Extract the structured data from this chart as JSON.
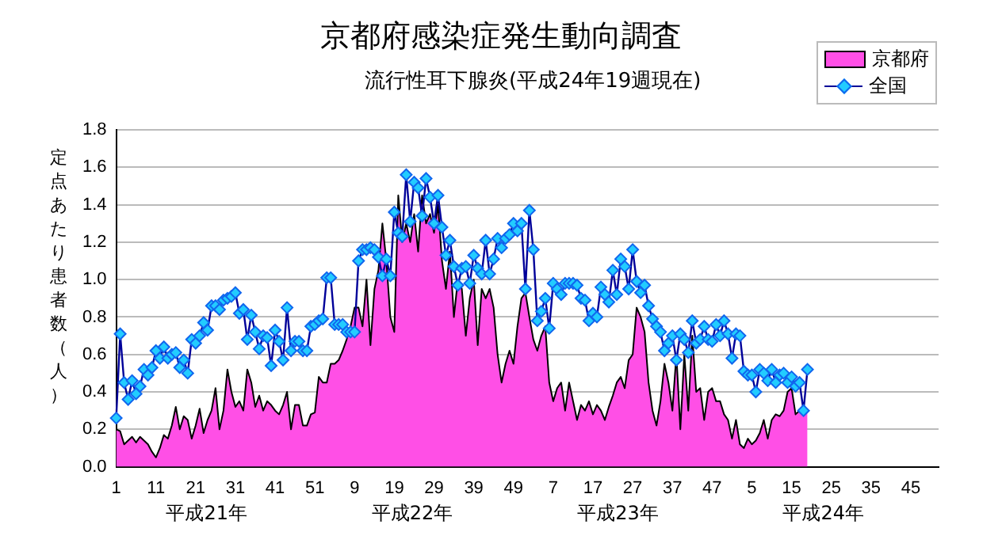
{
  "chart_data": {
    "type": "line",
    "title": "京都府感染症発生動向調査",
    "subtitle": "流行性耳下腺炎(平成24年19週現在)",
    "ylabel": "定点あたり患者数（人）",
    "categories": [
      "1",
      null,
      null,
      null,
      null,
      null,
      null,
      null,
      null,
      null,
      "11",
      null,
      null,
      null,
      null,
      null,
      null,
      null,
      null,
      null,
      "21",
      null,
      null,
      null,
      null,
      null,
      null,
      null,
      null,
      null,
      "31",
      null,
      null,
      null,
      null,
      null,
      null,
      null,
      null,
      null,
      "41",
      null,
      null,
      null,
      null,
      null,
      null,
      null,
      null,
      null,
      "51",
      null,
      null,
      null,
      null,
      null,
      null,
      null,
      null,
      null,
      "9",
      null,
      null,
      null,
      null,
      null,
      null,
      null,
      null,
      null,
      "19",
      null,
      null,
      null,
      null,
      null,
      null,
      null,
      null,
      null,
      "29",
      null,
      null,
      null,
      null,
      null,
      null,
      null,
      null,
      null,
      "39",
      null,
      null,
      null,
      null,
      null,
      null,
      null,
      null,
      null,
      "49",
      null,
      null,
      null,
      null,
      null,
      null,
      null,
      null,
      null,
      "7",
      null,
      null,
      null,
      null,
      null,
      null,
      null,
      null,
      null,
      "17",
      null,
      null,
      null,
      null,
      null,
      null,
      null,
      null,
      null,
      "27",
      null,
      null,
      null,
      null,
      null,
      null,
      null,
      null,
      null,
      "37",
      null,
      null,
      null,
      null,
      null,
      null,
      null,
      null,
      null,
      "47",
      null,
      null,
      null,
      null,
      null,
      null,
      null,
      null,
      null,
      "5",
      null,
      null,
      null,
      null,
      null,
      null,
      null,
      null,
      null,
      "15",
      null,
      null,
      null,
      null,
      null,
      null,
      null,
      null,
      null,
      "25",
      null,
      null,
      null,
      null,
      null,
      null,
      null,
      null,
      null,
      "35",
      null,
      null,
      null,
      null,
      null,
      null,
      null,
      null,
      null,
      "45",
      null,
      null,
      null,
      null,
      null,
      null,
      null
    ],
    "series": [
      {
        "name": "京都府",
        "type": "area",
        "color": "#ff4fe6",
        "values": [
          0.2,
          0.19,
          0.12,
          0.14,
          0.16,
          0.13,
          0.16,
          0.14,
          0.12,
          0.08,
          0.05,
          0.1,
          0.17,
          0.15,
          0.22,
          0.32,
          0.2,
          0.27,
          0.25,
          0.15,
          0.22,
          0.31,
          0.18,
          0.25,
          0.3,
          0.42,
          0.2,
          0.3,
          0.52,
          0.4,
          0.32,
          0.35,
          0.3,
          0.52,
          0.45,
          0.32,
          0.38,
          0.3,
          0.35,
          0.33,
          0.3,
          0.28,
          0.33,
          0.4,
          0.2,
          0.33,
          0.33,
          0.22,
          0.22,
          0.28,
          0.29,
          0.48,
          0.45,
          0.45,
          0.55,
          0.55,
          0.57,
          0.62,
          0.68,
          0.75,
          0.85,
          0.85,
          0.75,
          1.0,
          0.65,
          0.95,
          1.05,
          1.3,
          1.1,
          0.8,
          0.72,
          1.45,
          1.2,
          1.3,
          1.2,
          1.35,
          1.15,
          1.45,
          1.3,
          1.35,
          1.25,
          1.4,
          1.1,
          0.95,
          1.15,
          0.8,
          1.0,
          0.95,
          0.7,
          0.9,
          1.0,
          0.65,
          0.95,
          0.9,
          0.95,
          0.85,
          0.6,
          0.45,
          0.55,
          0.62,
          0.55,
          0.75,
          0.9,
          0.93,
          0.8,
          0.68,
          0.62,
          0.7,
          0.75,
          0.45,
          0.35,
          0.42,
          0.45,
          0.3,
          0.45,
          0.35,
          0.25,
          0.33,
          0.3,
          0.35,
          0.28,
          0.33,
          0.3,
          0.25,
          0.32,
          0.38,
          0.45,
          0.48,
          0.42,
          0.57,
          0.6,
          0.85,
          0.8,
          0.72,
          0.45,
          0.3,
          0.22,
          0.35,
          0.55,
          0.45,
          0.3,
          0.6,
          0.2,
          0.6,
          0.3,
          0.7,
          0.4,
          0.42,
          0.25,
          0.4,
          0.42,
          0.35,
          0.35,
          0.28,
          0.25,
          0.15,
          0.25,
          0.12,
          0.1,
          0.15,
          0.12,
          0.14,
          0.18,
          0.25,
          0.15,
          0.25,
          0.28,
          0.27,
          0.3,
          0.4,
          0.42,
          0.28,
          0.3,
          0.28,
          0.3,
          null,
          null,
          null,
          null,
          null,
          null,
          null,
          null,
          null,
          null,
          null,
          null,
          null,
          null,
          null,
          null,
          null,
          null,
          null,
          null,
          null,
          null,
          null,
          null,
          null,
          null,
          null,
          null,
          null,
          null,
          null,
          null,
          null
        ]
      },
      {
        "name": "全国",
        "color": "#000099",
        "marker": "diamond",
        "values": [
          0.26,
          0.71,
          0.45,
          0.36,
          0.46,
          0.39,
          0.43,
          0.52,
          0.49,
          0.53,
          0.62,
          0.58,
          0.64,
          0.58,
          0.6,
          0.61,
          0.53,
          0.57,
          0.5,
          0.68,
          0.66,
          0.7,
          0.77,
          0.73,
          0.86,
          0.86,
          0.84,
          0.89,
          0.9,
          0.91,
          0.93,
          0.82,
          0.84,
          0.68,
          0.81,
          0.72,
          0.63,
          0.7,
          0.69,
          0.54,
          0.73,
          0.67,
          0.57,
          0.85,
          0.62,
          0.67,
          0.67,
          0.62,
          0.62,
          0.75,
          0.76,
          0.78,
          0.79,
          1.01,
          1.01,
          0.76,
          0.76,
          0.76,
          0.72,
          0.72,
          0.72,
          1.1,
          1.16,
          1.16,
          1.17,
          1.16,
          1.12,
          1.02,
          1.11,
          1.02,
          1.36,
          1.25,
          1.23,
          1.56,
          1.31,
          1.52,
          1.49,
          1.34,
          1.54,
          1.44,
          1.3,
          1.45,
          1.28,
          1.13,
          1.21,
          1.07,
          0.97,
          1.06,
          1.07,
          0.98,
          1.13,
          1.06,
          1.03,
          1.21,
          1.03,
          1.11,
          1.22,
          1.17,
          1.22,
          1.24,
          1.3,
          1.26,
          1.3,
          0.95,
          1.37,
          1.16,
          0.78,
          0.83,
          0.9,
          0.74,
          0.98,
          0.95,
          0.92,
          0.98,
          0.98,
          0.98,
          0.97,
          0.9,
          0.89,
          0.78,
          0.82,
          0.8,
          0.96,
          0.92,
          0.88,
          1.05,
          0.92,
          1.11,
          1.07,
          0.95,
          1.16,
          0.99,
          0.93,
          0.97,
          0.86,
          0.79,
          0.75,
          0.72,
          0.62,
          0.66,
          0.7,
          0.57,
          0.71,
          0.68,
          0.61,
          0.78,
          0.66,
          0.68,
          0.75,
          0.68,
          0.67,
          0.76,
          0.7,
          0.78,
          0.71,
          0.58,
          0.71,
          0.7,
          0.51,
          0.49,
          0.49,
          0.4,
          0.52,
          0.5,
          0.46,
          0.52,
          0.45,
          0.49,
          0.5,
          0.45,
          0.48,
          0.43,
          0.45,
          0.3,
          0.52,
          null,
          null,
          null,
          null,
          null,
          null,
          null,
          null,
          null,
          null,
          null,
          null,
          null,
          null,
          null,
          null,
          null,
          null,
          null,
          null,
          null,
          null,
          null,
          null,
          null,
          null,
          null,
          null,
          null,
          null,
          null,
          null,
          null
        ]
      }
    ],
    "ylim": [
      0,
      1.8
    ],
    "yticks": [
      {
        "value": 0,
        "label": "0.0"
      },
      {
        "value": 0.2,
        "label": "0.2"
      },
      {
        "value": 0.4,
        "label": "0.4"
      },
      {
        "value": 0.6,
        "label": "0.6"
      },
      {
        "value": 0.8,
        "label": "0.8"
      },
      {
        "value": 1,
        "label": "1.0"
      },
      {
        "value": 1.2,
        "label": "1.2"
      },
      {
        "value": 1.4,
        "label": "1.4"
      },
      {
        "value": 1.6,
        "label": "1.6"
      },
      {
        "value": 1.8,
        "label": "1.8"
      }
    ],
    "grid": "y",
    "legend": "top right",
    "annotations": [
      "平成21年",
      "平成22年",
      "平成23年",
      "平成24年"
    ]
  }
}
